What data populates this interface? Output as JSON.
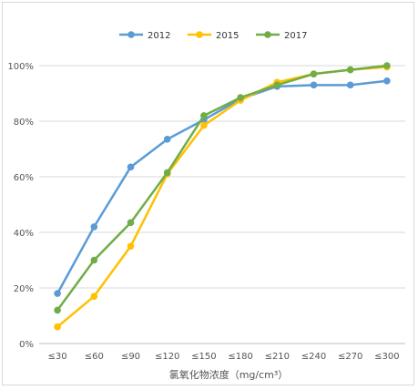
{
  "chart_data": {
    "type": "line",
    "categories": [
      "≤30",
      "≤60",
      "≤90",
      "≤120",
      "≤150",
      "≤180",
      "≤210",
      "≤240",
      "≤270",
      "≤300"
    ],
    "series": [
      {
        "name": "2012",
        "color": "#5b9bd5",
        "values": [
          18,
          42,
          63.5,
          73.5,
          80.5,
          88,
          92.5,
          93,
          93,
          94.5
        ]
      },
      {
        "name": "2015",
        "color": "#ffc000",
        "values": [
          6,
          17,
          35,
          61,
          78.5,
          87.5,
          94,
          97,
          98.5,
          99.5
        ]
      },
      {
        "name": "2017",
        "color": "#70ad47",
        "values": [
          12,
          30,
          43.5,
          61.5,
          82,
          88.5,
          93,
          97,
          98.5,
          100
        ]
      }
    ],
    "y_ticks": [
      "0%",
      "20%",
      "40%",
      "60%",
      "80%",
      "100%"
    ],
    "ylim": [
      0,
      120
    ],
    "grid": true,
    "legend_position": "top",
    "xlabel": "氯氧化物浓度（mg/cm³）",
    "ylabel": ""
  }
}
